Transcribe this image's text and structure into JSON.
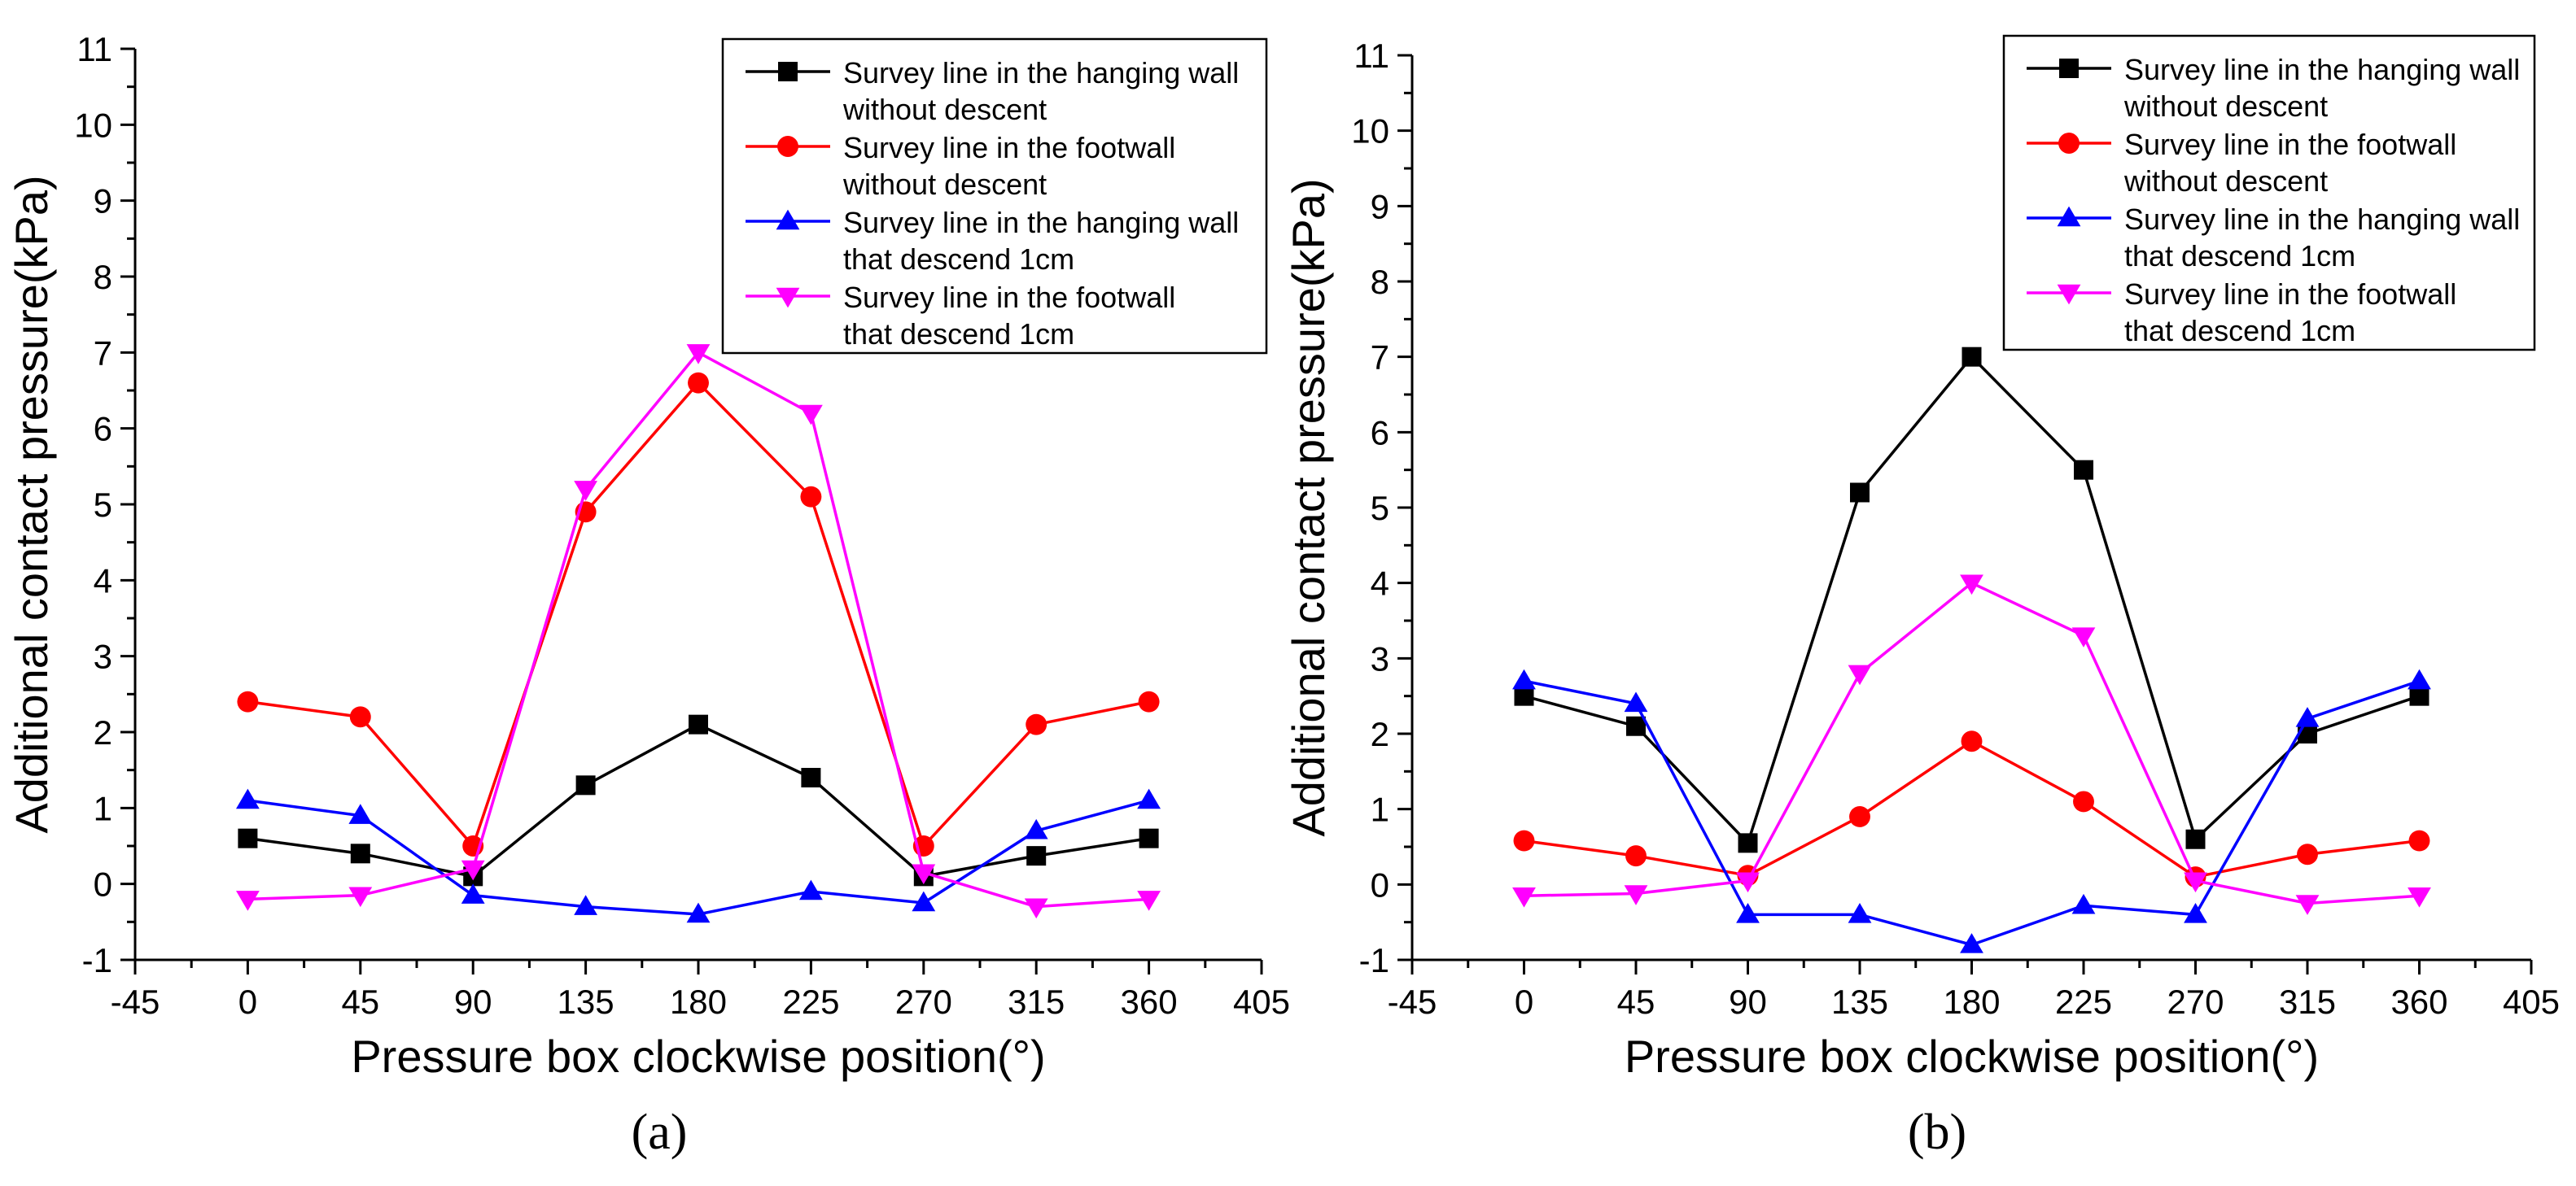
{
  "figure": {
    "panels": [
      "(a)",
      "(b)"
    ]
  },
  "chart_data": [
    {
      "type": "line",
      "panel_label": "a",
      "title": "",
      "xlabel": "Pressure box clockwise position(°)",
      "ylabel": "Additional contact pressure(kPa)",
      "xlim": [
        -45,
        405
      ],
      "ylim": [
        -1,
        11
      ],
      "xticks": [
        -45,
        0,
        45,
        90,
        135,
        180,
        225,
        270,
        315,
        360,
        405
      ],
      "yticks": [
        -1,
        0,
        1,
        2,
        3,
        4,
        5,
        6,
        7,
        8,
        9,
        10,
        11
      ],
      "legend_position": "top-right",
      "x": [
        0,
        45,
        90,
        135,
        180,
        225,
        270,
        315,
        360
      ],
      "series": [
        {
          "name": "Survey line in the hanging wall without descent",
          "legend_lines": [
            "Survey line in the hanging wall",
            "without descent"
          ],
          "color": "#000000",
          "marker": "square",
          "values": [
            0.6,
            0.4,
            0.1,
            1.3,
            2.1,
            1.4,
            0.1,
            0.37,
            0.6
          ]
        },
        {
          "name": "Survey line in the footwall without descent",
          "legend_lines": [
            "Survey line in the footwall",
            "without descent"
          ],
          "color": "#ff0000",
          "marker": "circle",
          "values": [
            2.4,
            2.2,
            0.5,
            4.9,
            6.6,
            5.1,
            0.5,
            2.1,
            2.4
          ]
        },
        {
          "name": "Survey line in the hanging wall that descend 1cm",
          "legend_lines": [
            "Survey line in the hanging wall",
            "that descend 1cm"
          ],
          "color": "#0000ff",
          "marker": "triangle-up",
          "values": [
            1.1,
            0.9,
            -0.15,
            -0.3,
            -0.4,
            -0.1,
            -0.25,
            0.7,
            1.1
          ]
        },
        {
          "name": "Survey line in the footwall that descend 1cm",
          "legend_lines": [
            "Survey line in the footwall",
            "that descend 1cm"
          ],
          "color": "#ff00ff",
          "marker": "triangle-down",
          "values": [
            -0.2,
            -0.15,
            0.2,
            5.2,
            7.0,
            6.2,
            0.15,
            -0.3,
            -0.2
          ]
        }
      ]
    },
    {
      "type": "line",
      "panel_label": "b",
      "title": "",
      "xlabel": "Pressure box clockwise position(°)",
      "ylabel": "Additional contact pressure(kPa)",
      "xlim": [
        -45,
        405
      ],
      "ylim": [
        -1,
        11
      ],
      "xticks": [
        -45,
        0,
        45,
        90,
        135,
        180,
        225,
        270,
        315,
        360,
        405
      ],
      "yticks": [
        -1,
        0,
        1,
        2,
        3,
        4,
        5,
        6,
        7,
        8,
        9,
        10,
        11
      ],
      "legend_position": "top-right",
      "x": [
        0,
        45,
        90,
        135,
        180,
        225,
        270,
        315,
        360
      ],
      "series": [
        {
          "name": "Survey line in the hanging wall without descent",
          "legend_lines": [
            "Survey line in the hanging wall",
            "without descent"
          ],
          "color": "#000000",
          "marker": "square",
          "values": [
            2.5,
            2.1,
            0.55,
            5.2,
            7.0,
            5.5,
            0.6,
            2.0,
            2.5
          ]
        },
        {
          "name": "Survey line in the footwall without descent",
          "legend_lines": [
            "Survey line in the footwall",
            "without descent"
          ],
          "color": "#ff0000",
          "marker": "circle",
          "values": [
            0.58,
            0.38,
            0.12,
            0.9,
            1.9,
            1.1,
            0.1,
            0.4,
            0.58
          ]
        },
        {
          "name": "Survey line in the hanging wall that descend 1cm",
          "legend_lines": [
            "Survey line in the hanging wall",
            "that descend 1cm"
          ],
          "color": "#0000ff",
          "marker": "triangle-up",
          "values": [
            2.7,
            2.4,
            -0.4,
            -0.4,
            -0.8,
            -0.28,
            -0.4,
            2.2,
            2.7
          ]
        },
        {
          "name": "Survey line in the footwall that descend 1cm",
          "legend_lines": [
            "Survey line in the footwall",
            "that descend 1cm"
          ],
          "color": "#ff00ff",
          "marker": "triangle-down",
          "values": [
            -0.15,
            -0.12,
            0.05,
            2.8,
            4.0,
            3.3,
            0.05,
            -0.25,
            -0.15
          ]
        }
      ]
    }
  ]
}
